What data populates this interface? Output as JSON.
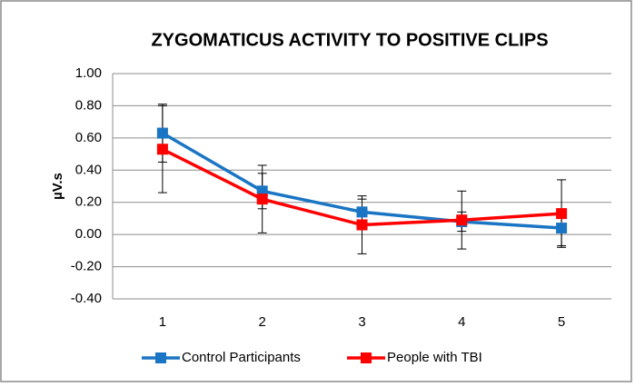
{
  "chart_data": {
    "type": "line",
    "title": "ZYGOMATICUS ACTIVITY TO POSITIVE CLIPS",
    "y_label": "µV.s",
    "categories": [
      "1",
      "2",
      "3",
      "4",
      "5"
    ],
    "series": [
      {
        "name": "Control Participants",
        "color": "#1a75c4",
        "values": [
          0.63,
          0.27,
          0.14,
          0.08,
          0.04
        ],
        "errors": [
          0.18,
          0.11,
          0.08,
          0.06,
          0.11
        ]
      },
      {
        "name": "People with TBI",
        "color": "#ff0000",
        "values": [
          0.53,
          0.22,
          0.06,
          0.09,
          0.13
        ],
        "errors": [
          0.27,
          0.21,
          0.18,
          0.18,
          0.21
        ]
      }
    ],
    "ylim": [
      -0.4,
      1.0
    ],
    "yticks": [
      {
        "value": -0.4,
        "label": "-0.40"
      },
      {
        "value": -0.2,
        "label": "-0.20"
      },
      {
        "value": 0,
        "label": "0.00"
      },
      {
        "value": 0.2,
        "label": "0.20"
      },
      {
        "value": 0.4,
        "label": "0.40"
      },
      {
        "value": 0.6,
        "label": "0.60"
      },
      {
        "value": 0.8,
        "label": "0.80"
      },
      {
        "value": 1.0,
        "label": "1.00"
      }
    ],
    "grid": true,
    "legend": "bottom"
  }
}
